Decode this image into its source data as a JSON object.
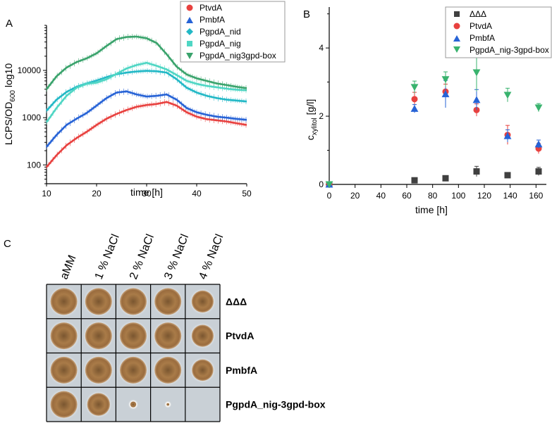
{
  "panels": {
    "a": "A",
    "b": "B",
    "c": "C"
  },
  "colors": {
    "red": "#e8413f",
    "blue": "#2763d6",
    "teal": "#22b8c6",
    "cyan": "#4fd6c4",
    "green": "#3aa36c",
    "grey": "#404040",
    "lightgreen": "#39b36e"
  },
  "chart_data": [
    {
      "type": "line",
      "panel": "A",
      "title": "",
      "xlabel": "time [h]",
      "ylabel": "LCPS/OD600 log10",
      "yscale": "log",
      "xlim": [
        10,
        50
      ],
      "ylim": [
        40,
        90000
      ],
      "xticks": [
        "10",
        "20",
        "30",
        "40",
        "50"
      ],
      "yticks": [
        "100",
        "1000",
        "10000"
      ],
      "x": [
        10,
        12,
        14,
        16,
        18,
        20,
        22,
        24,
        26,
        28,
        30,
        32,
        34,
        36,
        38,
        40,
        42,
        44,
        46,
        48,
        50
      ],
      "series": [
        {
          "name": "PtvdA",
          "color": "#e8413f",
          "marker": "circle",
          "values": [
            90,
            160,
            260,
            370,
            500,
            700,
            950,
            1200,
            1450,
            1700,
            1850,
            1950,
            2150,
            1800,
            1300,
            1050,
            930,
            880,
            830,
            760,
            700
          ]
        },
        {
          "name": "PmbfA",
          "color": "#2763d6",
          "marker": "triangle",
          "values": [
            240,
            430,
            700,
            950,
            1250,
            1800,
            2600,
            3400,
            3600,
            3100,
            2800,
            2900,
            3100,
            2400,
            1600,
            1300,
            1150,
            1050,
            1000,
            940,
            900
          ]
        },
        {
          "name": "PgpdA_nid",
          "color": "#22b8c6",
          "marker": "diamond",
          "values": [
            1400,
            2400,
            3500,
            4500,
            5300,
            6100,
            7200,
            8300,
            9000,
            9500,
            9800,
            9600,
            9000,
            6500,
            4300,
            3400,
            2900,
            2600,
            2400,
            2300,
            2200
          ]
        },
        {
          "name": "PgpdA_nig",
          "color": "#4fd6c4",
          "marker": "square",
          "values": [
            800,
            1600,
            2900,
            4300,
            5200,
            5500,
            6500,
            8500,
            11000,
            13000,
            14500,
            12500,
            10500,
            8000,
            6000,
            5200,
            4700,
            4400,
            4100,
            3900,
            3800
          ]
        },
        {
          "name": "PgpdA_nig3gpd-box",
          "color": "#3aa36c",
          "marker": "triangle-down",
          "values": [
            4000,
            7500,
            11500,
            15000,
            18000,
            23000,
            33000,
            46000,
            51000,
            52000,
            48000,
            38000,
            22000,
            12000,
            8200,
            6800,
            6000,
            5300,
            4900,
            4500,
            4200
          ]
        }
      ],
      "legend": {
        "position": "top-right",
        "entries": [
          "PtvdA",
          "PmbfA",
          "PgpdA_nid",
          "PgpdA_nig",
          "PgpdA_nig3gpd-box"
        ]
      }
    },
    {
      "type": "scatter",
      "panel": "B",
      "title": "",
      "xlabel": "time [h]",
      "ylabel": "c_xylitol [g/l]",
      "xlim": [
        0,
        168
      ],
      "ylim": [
        0,
        5.2
      ],
      "xticks": [
        "0",
        "20",
        "40",
        "60",
        "80",
        "100",
        "120",
        "140",
        "160"
      ],
      "yticks": [
        "0",
        "2",
        "4"
      ],
      "x": [
        0,
        66,
        90,
        114,
        138,
        162
      ],
      "series": [
        {
          "name": "ΔΔΔ",
          "color": "#404040",
          "marker": "square",
          "values": [
            0.0,
            0.12,
            0.18,
            0.38,
            0.27,
            0.38
          ],
          "err": [
            0.02,
            0.03,
            0.04,
            0.15,
            0.05,
            0.12
          ]
        },
        {
          "name": "PtvdA",
          "color": "#e8413f",
          "marker": "circle",
          "values": [
            0.0,
            2.5,
            2.72,
            2.18,
            1.45,
            1.05
          ],
          "err": [
            0.02,
            0.2,
            0.22,
            0.18,
            0.28,
            0.15
          ]
        },
        {
          "name": "PmbfA",
          "color": "#2763d6",
          "marker": "triangle",
          "values": [
            0.0,
            2.22,
            2.65,
            2.48,
            1.42,
            1.18
          ],
          "err": [
            0.02,
            0.12,
            0.4,
            0.3,
            0.18,
            0.12
          ]
        },
        {
          "name": "PgpdA_nig-3gpd-box",
          "color": "#39b36e",
          "marker": "triangle-down",
          "values": [
            0.0,
            2.85,
            3.08,
            3.28,
            2.62,
            2.25
          ],
          "err": [
            0.02,
            0.18,
            0.22,
            0.55,
            0.2,
            0.12
          ]
        }
      ],
      "legend": {
        "position": "top-right",
        "entries": [
          "ΔΔΔ",
          "PtvdA",
          "PmbfA",
          "PgpdA_nig-3gpd-box"
        ]
      }
    }
  ],
  "plate": {
    "columns": [
      "aMM",
      "1 % NaCl",
      "2 % NaCl",
      "3 % NaCl",
      "4 % NaCl"
    ],
    "rows": [
      "ΔΔΔ",
      "PtvdA",
      "PmbfA",
      "PgpdA_nig-3gpd-box"
    ],
    "growth": [
      [
        1,
        1,
        1,
        1,
        0.82
      ],
      [
        1,
        1,
        1,
        1,
        0.82
      ],
      [
        1,
        1,
        1,
        1,
        0.8
      ],
      [
        1,
        0.85,
        0.22,
        0.1,
        0.0
      ]
    ]
  }
}
